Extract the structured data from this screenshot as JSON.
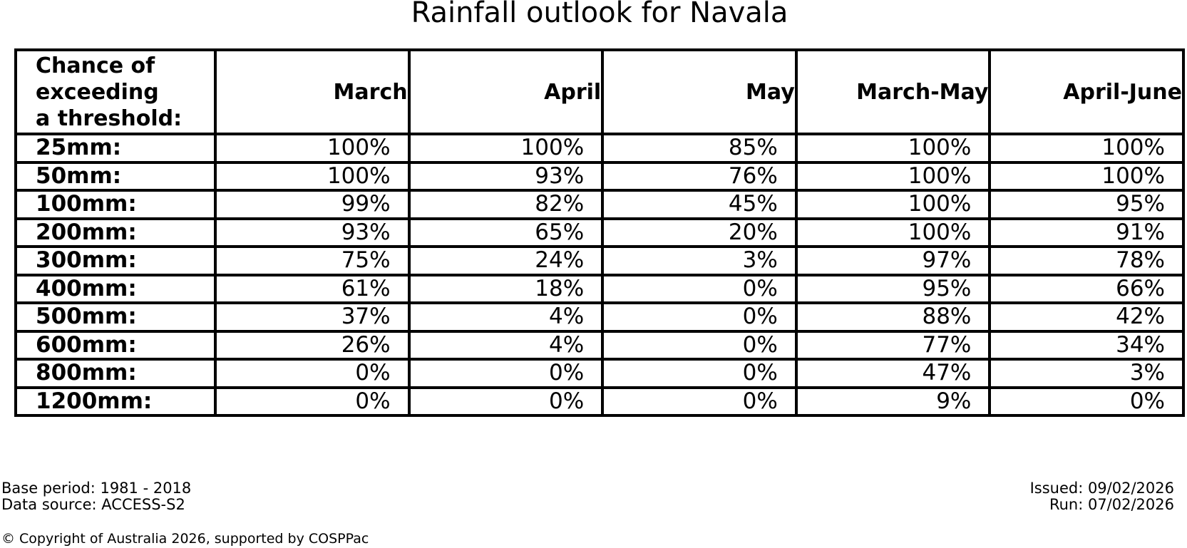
{
  "title": "Rainfall outlook for Navala",
  "table": {
    "corner_header": "Chance of\nexceeding\na threshold:",
    "columns": [
      "March",
      "April",
      "May",
      "March-May",
      "April-June"
    ],
    "rows": [
      {
        "label": "25mm:",
        "values": [
          "100%",
          "100%",
          "85%",
          "100%",
          "100%"
        ]
      },
      {
        "label": "50mm:",
        "values": [
          "100%",
          "93%",
          "76%",
          "100%",
          "100%"
        ]
      },
      {
        "label": "100mm:",
        "values": [
          "99%",
          "82%",
          "45%",
          "100%",
          "95%"
        ]
      },
      {
        "label": "200mm:",
        "values": [
          "93%",
          "65%",
          "20%",
          "100%",
          "91%"
        ]
      },
      {
        "label": "300mm:",
        "values": [
          "75%",
          "24%",
          "3%",
          "97%",
          "78%"
        ]
      },
      {
        "label": "400mm:",
        "values": [
          "61%",
          "18%",
          "0%",
          "95%",
          "66%"
        ]
      },
      {
        "label": "500mm:",
        "values": [
          "37%",
          "4%",
          "0%",
          "88%",
          "42%"
        ]
      },
      {
        "label": "600mm:",
        "values": [
          "26%",
          "4%",
          "0%",
          "77%",
          "34%"
        ]
      },
      {
        "label": "800mm:",
        "values": [
          "0%",
          "0%",
          "0%",
          "47%",
          "3%"
        ]
      },
      {
        "label": "1200mm:",
        "values": [
          "0%",
          "0%",
          "0%",
          "9%",
          "0%"
        ]
      }
    ]
  },
  "footer": {
    "base_period": "Base period: 1981 - 2018",
    "data_source": "Data source: ACCESS-S2",
    "issued": "Issued: 09/02/2026",
    "run": "Run: 07/02/2026",
    "copyright": "© Copyright of Australia 2026, supported by COSPPac"
  },
  "chart_data": {
    "type": "table",
    "title": "Rainfall outlook for Navala",
    "row_header": "Chance of exceeding a threshold:",
    "columns": [
      "March",
      "April",
      "May",
      "March-May",
      "April-June"
    ],
    "thresholds_mm": [
      25,
      50,
      100,
      200,
      300,
      400,
      500,
      600,
      800,
      1200
    ],
    "values_percent": [
      [
        100,
        100,
        85,
        100,
        100
      ],
      [
        100,
        93,
        76,
        100,
        100
      ],
      [
        99,
        82,
        45,
        100,
        95
      ],
      [
        93,
        65,
        20,
        100,
        91
      ],
      [
        75,
        24,
        3,
        97,
        78
      ],
      [
        61,
        18,
        0,
        95,
        66
      ],
      [
        37,
        4,
        0,
        88,
        42
      ],
      [
        26,
        4,
        0,
        77,
        34
      ],
      [
        0,
        0,
        0,
        47,
        3
      ],
      [
        0,
        0,
        0,
        9,
        0
      ]
    ]
  }
}
